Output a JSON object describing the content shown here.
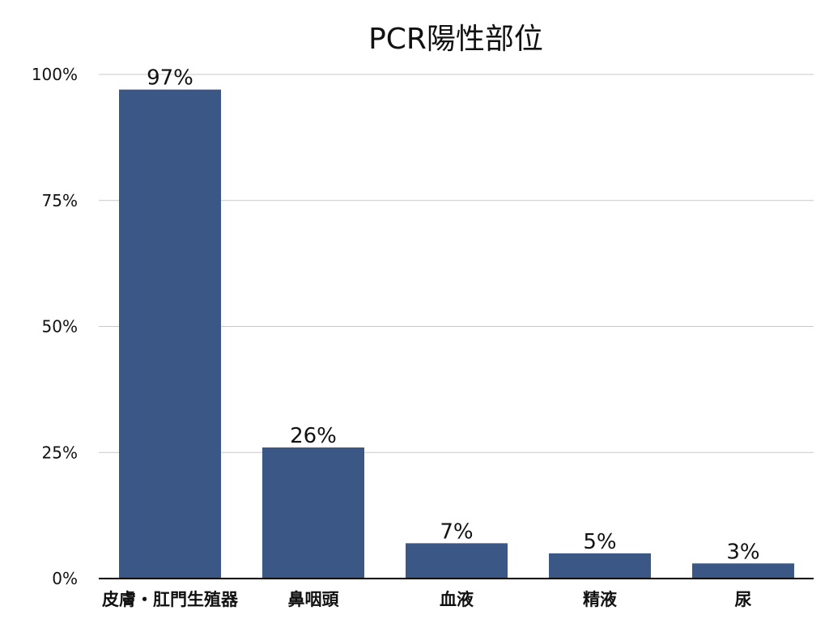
{
  "chart_data": {
    "type": "bar",
    "title": "PCR陽性部位",
    "categories": [
      "皮膚・肛門生殖器",
      "鼻咽頭",
      "血液",
      "精液",
      "尿"
    ],
    "values": [
      97,
      26,
      7,
      5,
      3
    ],
    "value_labels": [
      "97%",
      "26%",
      "7%",
      "5%",
      "3%"
    ],
    "ylim": [
      0,
      100
    ],
    "yticks": [
      0,
      25,
      50,
      75,
      100
    ],
    "ytick_labels": [
      "0%",
      "25%",
      "50%",
      "75%",
      "100%"
    ],
    "xlabel": "",
    "ylabel": "",
    "grid": true,
    "bar_color": "#3a5785",
    "grid_color": "#c8c8c8",
    "axis_color": "#000000"
  }
}
